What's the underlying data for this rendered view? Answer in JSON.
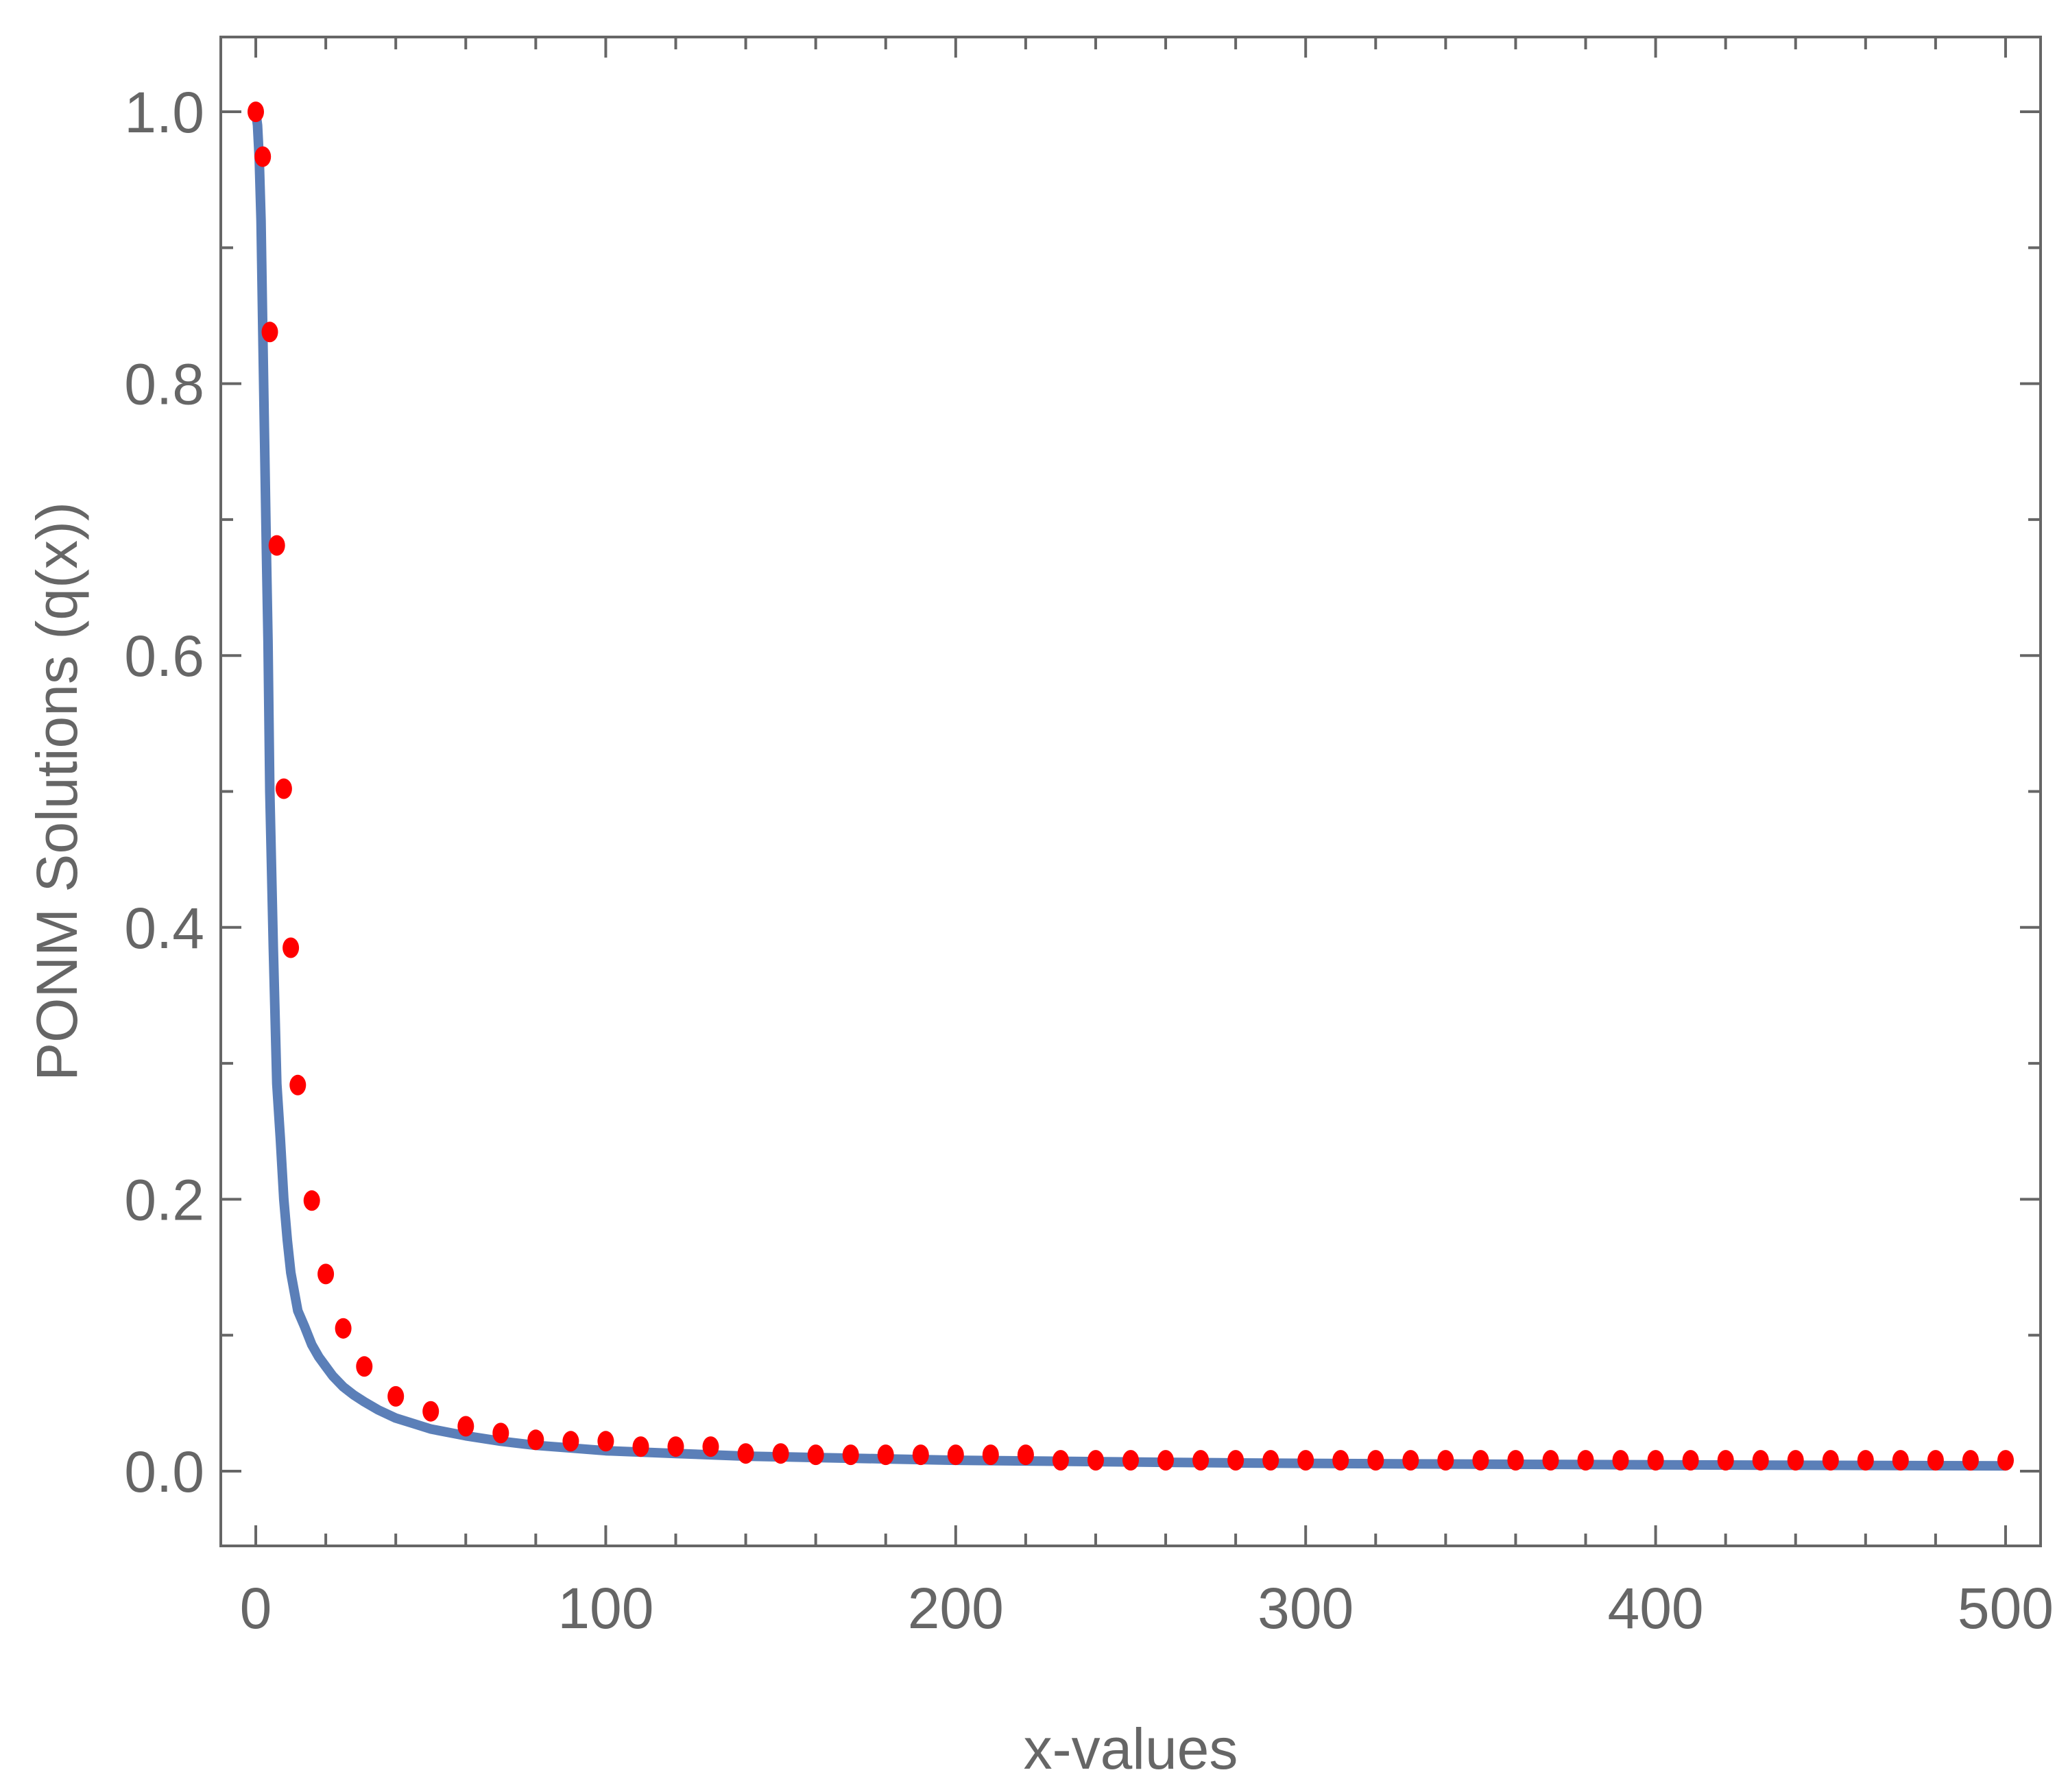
{
  "chart_data": {
    "type": "line",
    "title": "",
    "xlabel": "x-values",
    "ylabel": "PONM Solutions (q(x))",
    "xlim": [
      -10,
      510
    ],
    "ylim": [
      -0.055,
      1.055
    ],
    "x_ticks": [
      0,
      100,
      200,
      300,
      400,
      500
    ],
    "x_tick_labels": [
      "0",
      "100",
      "200",
      "300",
      "400",
      "500"
    ],
    "y_ticks": [
      0.0,
      0.2,
      0.4,
      0.6,
      0.8,
      1.0
    ],
    "y_tick_labels": [
      "0.0",
      "0.2",
      "0.4",
      "0.6",
      "0.8",
      "1.0"
    ],
    "grid": false,
    "frame": true,
    "colors": {
      "curve": "#5b7fb8",
      "points": "#ff0000",
      "axes": "#666666",
      "background": "#ffffff"
    },
    "series": [
      {
        "style": "line",
        "x": [
          0,
          0.5,
          1,
          1.5,
          2,
          2.5,
          3,
          3.5,
          4,
          5,
          6,
          7,
          8,
          9,
          10,
          12,
          14,
          16,
          18,
          20,
          22,
          25,
          28,
          31,
          35,
          40,
          45,
          50,
          60,
          70,
          80,
          90,
          100,
          120,
          140,
          160,
          180,
          200,
          220,
          240,
          260,
          280,
          300,
          330,
          360,
          400,
          440,
          480,
          500
        ],
        "y": [
          1.0,
          0.99,
          0.965,
          0.92,
          0.84,
          0.76,
          0.68,
          0.61,
          0.5,
          0.385,
          0.285,
          0.245,
          0.2,
          0.17,
          0.146,
          0.118,
          0.106,
          0.093,
          0.084,
          0.077,
          0.07,
          0.062,
          0.056,
          0.051,
          0.045,
          0.039,
          0.035,
          0.031,
          0.026,
          0.022,
          0.019,
          0.017,
          0.015,
          0.013,
          0.011,
          0.01,
          0.009,
          0.008,
          0.0075,
          0.007,
          0.0065,
          0.006,
          0.0057,
          0.0053,
          0.005,
          0.0046,
          0.0043,
          0.004,
          0.0039
        ]
      },
      {
        "style": "points",
        "x": [
          0,
          2,
          4,
          6,
          8,
          10,
          12,
          16,
          20,
          25,
          31,
          40,
          50,
          60,
          70,
          80,
          90,
          100,
          110,
          120,
          130,
          140,
          150,
          160,
          170,
          180,
          190,
          200,
          210,
          220,
          230,
          240,
          250,
          260,
          270,
          280,
          290,
          300,
          310,
          320,
          330,
          340,
          350,
          360,
          370,
          380,
          390,
          400,
          410,
          420,
          430,
          440,
          450,
          460,
          470,
          480,
          490,
          500
        ],
        "y": [
          1.0,
          0.967,
          0.838,
          0.681,
          0.502,
          0.385,
          0.284,
          0.199,
          0.145,
          0.105,
          0.077,
          0.055,
          0.044,
          0.033,
          0.028,
          0.023,
          0.022,
          0.022,
          0.018,
          0.018,
          0.018,
          0.013,
          0.013,
          0.012,
          0.012,
          0.012,
          0.012,
          0.012,
          0.012,
          0.012,
          0.008,
          0.008,
          0.008,
          0.008,
          0.008,
          0.008,
          0.008,
          0.008,
          0.008,
          0.008,
          0.008,
          0.008,
          0.008,
          0.008,
          0.008,
          0.008,
          0.008,
          0.008,
          0.008,
          0.008,
          0.008,
          0.008,
          0.008,
          0.008,
          0.008,
          0.008,
          0.008,
          0.008
        ]
      }
    ]
  }
}
